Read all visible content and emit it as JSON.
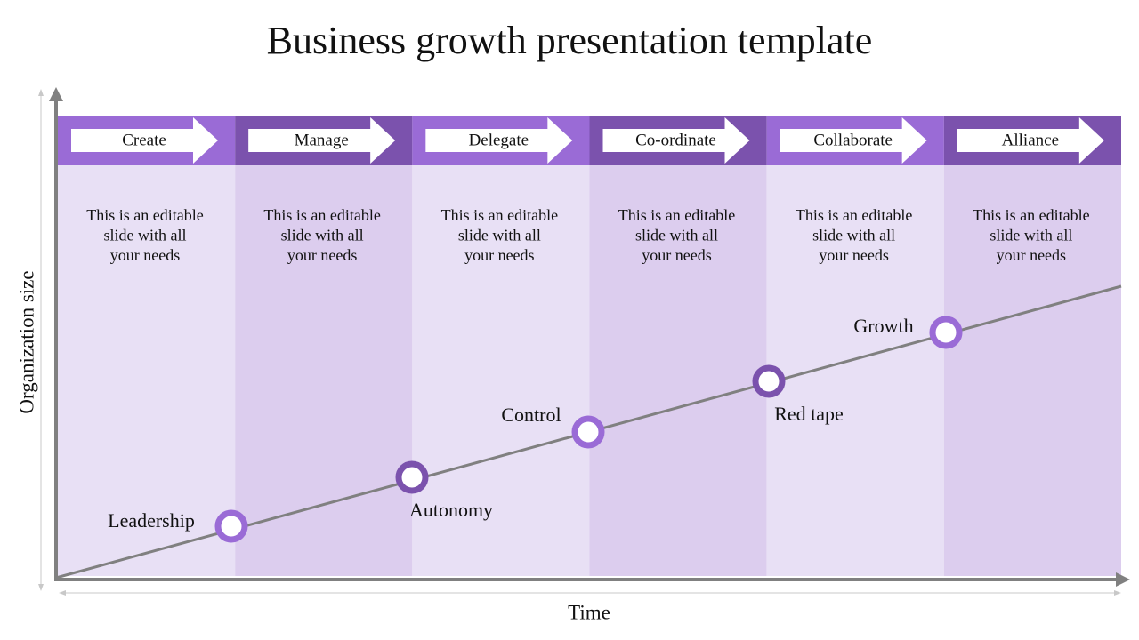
{
  "title": "Business growth presentation template",
  "y_axis_label": "Organization size",
  "x_axis_label": "Time",
  "columns": [
    {
      "label": "Create",
      "text": [
        "This is an editable",
        "slide with all",
        "your needs"
      ]
    },
    {
      "label": "Manage",
      "text": [
        "This is an editable",
        "slide with all",
        "your needs"
      ]
    },
    {
      "label": "Delegate",
      "text": [
        "This is an editable",
        "slide with all",
        "your needs"
      ]
    },
    {
      "label": "Co-ordinate",
      "text": [
        "This is an editable",
        "slide with all",
        "your needs"
      ]
    },
    {
      "label": "Collaborate",
      "text": [
        "This is an editable",
        "slide with all",
        "your needs"
      ]
    },
    {
      "label": "Alliance",
      "text": [
        "This is an editable",
        "slide with all",
        "your needs"
      ]
    }
  ],
  "milestones": [
    {
      "label": "Leadership"
    },
    {
      "label": "Autonomy"
    },
    {
      "label": "Control"
    },
    {
      "label": "Red tape"
    },
    {
      "label": "Growth"
    }
  ]
}
